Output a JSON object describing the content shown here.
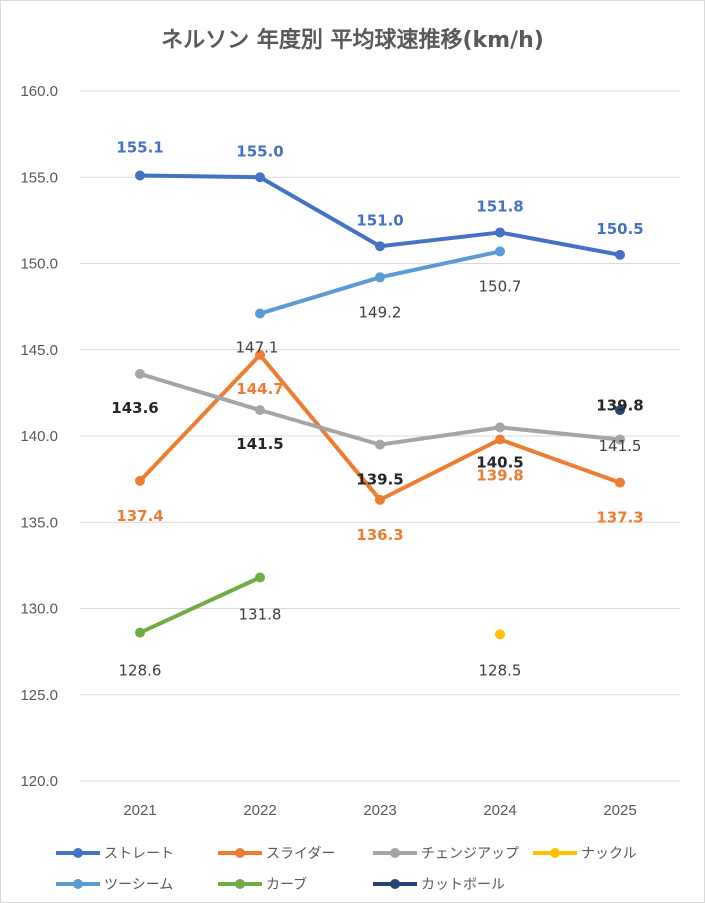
{
  "chart_data": {
    "type": "line",
    "title": "ネルソン 年度別 平均球速推移(km/h)",
    "categories": [
      "2021",
      "2022",
      "2023",
      "2024",
      "2025"
    ],
    "ylim": [
      120.0,
      160.0
    ],
    "yticks": [
      "120.0",
      "125.0",
      "130.0",
      "135.0",
      "140.0",
      "145.0",
      "150.0",
      "155.0",
      "160.0"
    ],
    "grid": true,
    "legend_position": "bottom",
    "series": [
      {
        "name": "ストレート",
        "color": "#4472C4",
        "values": [
          155.1,
          155.0,
          151.0,
          151.8,
          150.5
        ],
        "labels": [
          "155.1",
          "155.0",
          "151.0",
          "151.8",
          "150.5"
        ],
        "label_color": "#4472C4"
      },
      {
        "name": "スライダー",
        "color": "#ED7D31",
        "values": [
          137.4,
          144.7,
          136.3,
          139.8,
          137.3
        ],
        "labels": [
          "137.4",
          "144.7",
          "136.3",
          "139.8",
          "137.3"
        ],
        "label_color": "#ED7D31"
      },
      {
        "name": "チェンジアップ",
        "color": "#A5A5A5",
        "values": [
          143.6,
          141.5,
          139.5,
          140.5,
          139.8
        ],
        "labels": [
          "143.6",
          "141.5",
          "139.5",
          "140.5",
          "139.8"
        ],
        "label_color": "#262626"
      },
      {
        "name": "ナックル",
        "color": "#FFC000",
        "values": [
          null,
          null,
          null,
          128.5,
          null
        ],
        "labels": [
          null,
          null,
          null,
          "128.5",
          null
        ],
        "label_color": "#404040"
      },
      {
        "name": "ツーシーム",
        "color": "#5B9BD5",
        "values": [
          null,
          147.1,
          149.2,
          150.7,
          null
        ],
        "labels": [
          null,
          "147.1",
          "149.2",
          "150.7",
          null
        ],
        "label_color": "#404040"
      },
      {
        "name": "カーブ",
        "color": "#70AD47",
        "values": [
          128.6,
          131.8,
          null,
          null,
          null
        ],
        "labels": [
          "128.6",
          "131.8",
          null,
          null,
          null
        ],
        "label_color": "#404040"
      },
      {
        "name": "カットボール",
        "color": "#264478",
        "values": [
          null,
          null,
          null,
          null,
          141.5
        ],
        "labels": [
          null,
          null,
          null,
          null,
          "141.5"
        ],
        "label_color": "#404040"
      }
    ]
  }
}
